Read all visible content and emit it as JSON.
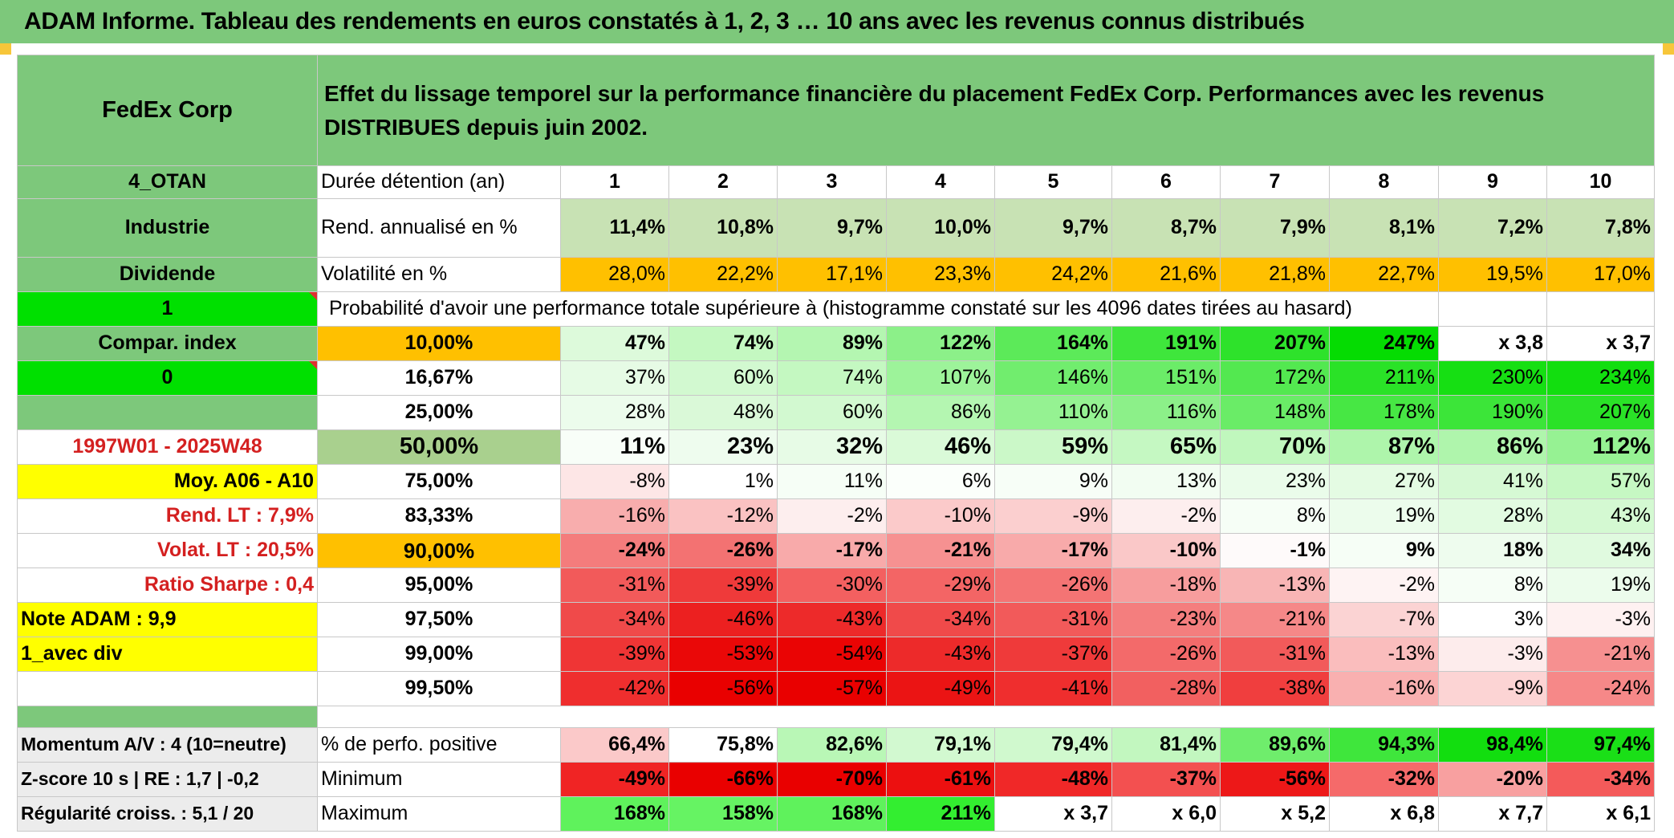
{
  "banner": "ADAM Informe. Tableau des rendements en euros constatés à 1, 2, 3 … 10 ans avec les revenus connus distribués",
  "left": {
    "company": "FedEx Corp",
    "code": "4_OTAN",
    "sector": "Industrie",
    "dividend": "Dividende",
    "flag1": "1",
    "compar": "Compar. index",
    "flag0": "0",
    "period": "1997W01 - 2025W48",
    "moy": "Moy. A06 - A10",
    "rend_lt": "Rend. LT :   7,9%",
    "volat_lt": "Volat. LT :   20,5%",
    "sharpe": "Ratio Sharpe :   0,4",
    "note": "Note ADAM : 9,9",
    "avec_div": "1_avec div",
    "momentum": "Momentum A/V : 4 (10=neutre)",
    "zscore": "Z-score 10 s | RE : 1,7 | -0,2",
    "regularite": "Régularité croiss. : 5,1 / 20"
  },
  "title": "Effet du lissage temporel sur la performance financière du placement FedEx Corp. Performances avec les revenus DISTRIBUES depuis juin 2002.",
  "duree_label": "Durée détention (an)",
  "years": [
    "1",
    "2",
    "3",
    "4",
    "5",
    "6",
    "7",
    "8",
    "9",
    "10"
  ],
  "rend_label": "Rend. annualisé en %",
  "rend": [
    "11,4%",
    "10,8%",
    "9,7%",
    "10,0%",
    "9,7%",
    "8,7%",
    "7,9%",
    "8,1%",
    "7,2%",
    "7,8%"
  ],
  "vol_label": "Volatilité en %",
  "vol": [
    "28,0%",
    "22,2%",
    "17,1%",
    "23,3%",
    "24,2%",
    "21,6%",
    "21,8%",
    "22,7%",
    "19,5%",
    "17,0%"
  ],
  "proba_label": "Probabilité d'avoir une performance totale supérieure à (histogramme constaté sur les 4096 dates tirées au hasard)",
  "rows": [
    {
      "pct": "10,00%",
      "vals": [
        "47%",
        "74%",
        "89%",
        "122%",
        "164%",
        "191%",
        "207%",
        "247%",
        "x 3,8",
        "x 3,7"
      ]
    },
    {
      "pct": "16,67%",
      "vals": [
        "37%",
        "60%",
        "74%",
        "107%",
        "146%",
        "151%",
        "172%",
        "211%",
        "230%",
        "234%"
      ]
    },
    {
      "pct": "25,00%",
      "vals": [
        "28%",
        "48%",
        "60%",
        "86%",
        "110%",
        "116%",
        "148%",
        "178%",
        "190%",
        "207%"
      ]
    },
    {
      "pct": "50,00%",
      "vals": [
        "11%",
        "23%",
        "32%",
        "46%",
        "59%",
        "65%",
        "70%",
        "87%",
        "86%",
        "112%"
      ]
    },
    {
      "pct": "75,00%",
      "vals": [
        "-8%",
        "1%",
        "11%",
        "6%",
        "9%",
        "13%",
        "23%",
        "27%",
        "41%",
        "57%"
      ]
    },
    {
      "pct": "83,33%",
      "vals": [
        "-16%",
        "-12%",
        "-2%",
        "-10%",
        "-9%",
        "-2%",
        "8%",
        "19%",
        "28%",
        "43%"
      ]
    },
    {
      "pct": "90,00%",
      "vals": [
        "-24%",
        "-26%",
        "-17%",
        "-21%",
        "-17%",
        "-10%",
        "-1%",
        "9%",
        "18%",
        "34%"
      ]
    },
    {
      "pct": "95,00%",
      "vals": [
        "-31%",
        "-39%",
        "-30%",
        "-29%",
        "-26%",
        "-18%",
        "-13%",
        "-2%",
        "8%",
        "19%"
      ]
    },
    {
      "pct": "97,50%",
      "vals": [
        "-34%",
        "-46%",
        "-43%",
        "-34%",
        "-31%",
        "-23%",
        "-21%",
        "-7%",
        "3%",
        "-3%"
      ]
    },
    {
      "pct": "99,00%",
      "vals": [
        "-39%",
        "-53%",
        "-54%",
        "-43%",
        "-37%",
        "-26%",
        "-31%",
        "-13%",
        "-3%",
        "-21%"
      ]
    },
    {
      "pct": "99,50%",
      "vals": [
        "-42%",
        "-56%",
        "-57%",
        "-49%",
        "-41%",
        "-28%",
        "-38%",
        "-16%",
        "-9%",
        "-24%"
      ]
    }
  ],
  "pos_label": "% de perfo. positive",
  "pos": [
    "66,4%",
    "75,8%",
    "82,6%",
    "79,1%",
    "79,4%",
    "81,4%",
    "89,6%",
    "94,3%",
    "98,4%",
    "97,4%"
  ],
  "min_label": "Minimum",
  "min": [
    "-49%",
    "-66%",
    "-70%",
    "-61%",
    "-48%",
    "-37%",
    "-56%",
    "-32%",
    "-20%",
    "-34%"
  ],
  "max_label": "Maximum",
  "max": [
    "168%",
    "158%",
    "168%",
    "211%",
    "x 3,7",
    "x 6,0",
    "x 5,2",
    "x 6,8",
    "x 7,7",
    "x 6,1"
  ],
  "colors": {
    "header_green": "#7dc87b",
    "bright_green": "#00e000",
    "yellow": "#ffff00",
    "orange": "#ffc000",
    "red_text": "#d42020"
  }
}
